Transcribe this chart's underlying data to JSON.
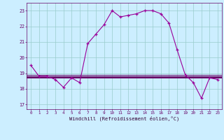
{
  "hours": [
    0,
    1,
    2,
    3,
    4,
    5,
    6,
    7,
    8,
    9,
    10,
    11,
    12,
    13,
    14,
    15,
    16,
    17,
    18,
    19,
    20,
    21,
    22,
    23
  ],
  "windchill": [
    19.5,
    18.8,
    18.8,
    18.6,
    18.1,
    18.7,
    18.4,
    20.9,
    21.5,
    22.1,
    23.0,
    22.6,
    22.7,
    22.8,
    23.0,
    23.0,
    22.8,
    22.2,
    20.5,
    18.9,
    18.4,
    17.4,
    18.7,
    18.6
  ],
  "hlines": [
    18.9,
    18.82,
    18.76,
    18.7
  ],
  "bg_color": "#cceeff",
  "grid_color": "#99cccc",
  "line_color": "#990099",
  "hline_color": "#660066",
  "marker": "+",
  "xlabel": "Windchill (Refroidissement éolien,°C)",
  "yticks": [
    17,
    18,
    19,
    20,
    21,
    22,
    23
  ],
  "xticks": [
    0,
    1,
    2,
    3,
    4,
    5,
    6,
    7,
    8,
    9,
    10,
    11,
    12,
    13,
    14,
    15,
    16,
    17,
    18,
    19,
    20,
    21,
    22,
    23
  ],
  "ylim": [
    16.7,
    23.5
  ],
  "xlim": [
    -0.5,
    23.5
  ]
}
